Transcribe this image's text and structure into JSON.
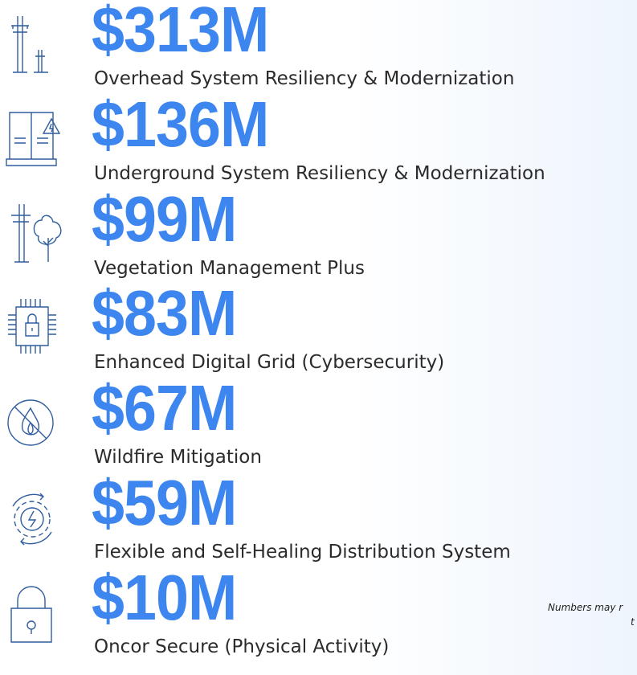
{
  "items": [
    {
      "amount": "$313M",
      "label": "Overhead System Resiliency & Modernization"
    },
    {
      "amount": "$136M",
      "label": "Underground System Resiliency & Modernization"
    },
    {
      "amount": "$99M",
      "label": "Vegetation Management Plus"
    },
    {
      "amount": "$83M",
      "label": "Enhanced Digital Grid (Cybersecurity)"
    },
    {
      "amount": "$67M",
      "label": "Wildfire Mitigation"
    },
    {
      "amount": "$59M",
      "label": "Flexible and Self-Healing Distribution System"
    },
    {
      "amount": "$10M",
      "label": "Oncor Secure (Physical Activity)"
    }
  ],
  "footnote": [
    "Numbers may r",
    "t"
  ]
}
